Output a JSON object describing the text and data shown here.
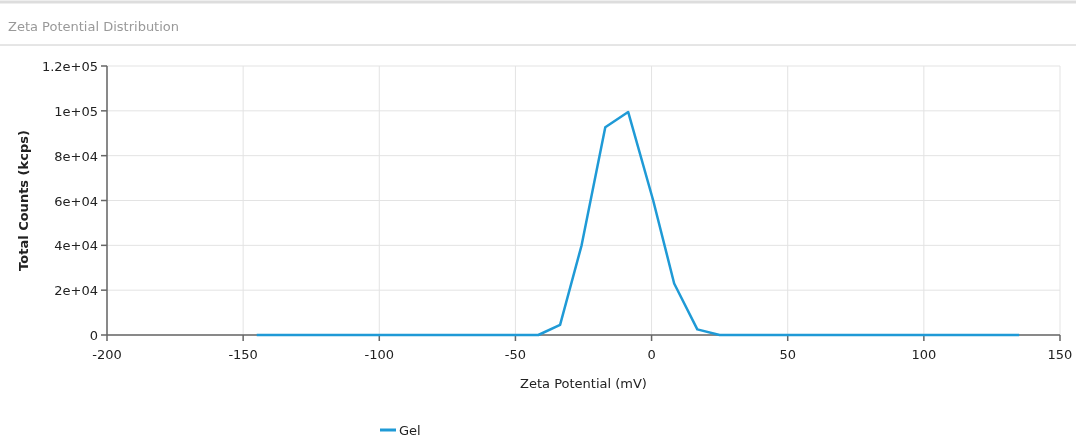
{
  "chart_data": {
    "type": "line",
    "title": "Zeta Potential Distribution",
    "xlabel": "Zeta Potential (mV)",
    "ylabel": "Total Counts (kcps)",
    "series": [
      {
        "name": "Gel",
        "color": "#1f9ad6",
        "x": [
          -145,
          -41.6,
          -33.6,
          -25.7,
          -17,
          -8.6,
          0.6,
          8.3,
          16.8,
          25,
          135
        ],
        "values": [
          0,
          0,
          4500,
          40000,
          92700,
          99500,
          60000,
          23000,
          2500,
          0,
          0
        ]
      }
    ],
    "xlim": [
      -200,
      150
    ],
    "xticks": [
      -200,
      -150,
      -100,
      -50,
      0,
      50,
      100,
      150
    ],
    "ylim": [
      0,
      120000
    ],
    "yticks": [
      {
        "value": 0,
        "label": "0"
      },
      {
        "value": 20000,
        "label": "2e+04"
      },
      {
        "value": 40000,
        "label": "4e+04"
      },
      {
        "value": 60000,
        "label": "6e+04"
      },
      {
        "value": 80000,
        "label": "8e+04"
      },
      {
        "value": 100000,
        "label": "1e+05"
      },
      {
        "value": 120000,
        "label": "1.2e+05"
      }
    ],
    "grid": true,
    "legend": "bottom",
    "marker": "none",
    "line_style": "solid"
  }
}
